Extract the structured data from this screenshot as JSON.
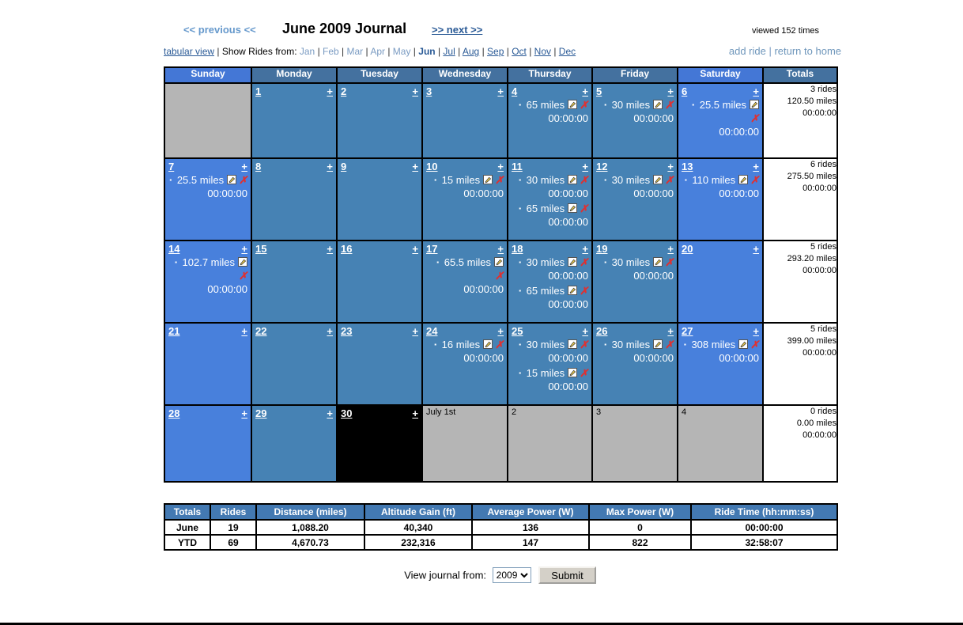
{
  "header": {
    "previous_label": "<< previous <<",
    "title": "June 2009 Journal",
    "next_label": ">> next >>",
    "viewed": "viewed 152 times",
    "tabular_view": "tabular view",
    "show_rides_label": "Show Rides from:",
    "months": [
      {
        "label": "Jan",
        "state": "muted"
      },
      {
        "label": "Feb",
        "state": "muted"
      },
      {
        "label": "Mar",
        "state": "muted"
      },
      {
        "label": "Apr",
        "state": "muted"
      },
      {
        "label": "May",
        "state": "muted"
      },
      {
        "label": "Jun",
        "state": "current"
      },
      {
        "label": "Jul",
        "state": "link"
      },
      {
        "label": "Aug",
        "state": "link"
      },
      {
        "label": "Sep",
        "state": "link"
      },
      {
        "label": "Oct",
        "state": "link"
      },
      {
        "label": "Nov",
        "state": "link"
      },
      {
        "label": "Dec",
        "state": "link"
      }
    ],
    "add_ride": "add ride",
    "return_home": "return to home"
  },
  "calendar": {
    "day_headers": [
      "Sunday",
      "Monday",
      "Tuesday",
      "Wednesday",
      "Thursday",
      "Friday",
      "Saturday",
      "Totals"
    ],
    "add_label": "+",
    "weeks": [
      {
        "days": [
          {
            "type": "other",
            "label": ""
          },
          {
            "type": "day",
            "num": "1",
            "rides": []
          },
          {
            "type": "day",
            "num": "2",
            "rides": []
          },
          {
            "type": "day",
            "num": "3",
            "rides": []
          },
          {
            "type": "day",
            "num": "4",
            "rides": [
              {
                "miles": "65 miles",
                "time": "00:00:00"
              }
            ]
          },
          {
            "type": "day",
            "num": "5",
            "rides": [
              {
                "miles": "30 miles",
                "time": "00:00:00"
              }
            ]
          },
          {
            "type": "day",
            "num": "6",
            "rides": [
              {
                "miles": "25.5 miles",
                "time": "00:00:00"
              }
            ]
          }
        ],
        "totals": {
          "rides": "3 rides",
          "miles": "120.50 miles",
          "time": "00:00:00"
        }
      },
      {
        "days": [
          {
            "type": "day",
            "num": "7",
            "rides": [
              {
                "miles": "25.5 miles",
                "time": "00:00:00"
              }
            ]
          },
          {
            "type": "day",
            "num": "8",
            "rides": []
          },
          {
            "type": "day",
            "num": "9",
            "rides": []
          },
          {
            "type": "day",
            "num": "10",
            "rides": [
              {
                "miles": "15 miles",
                "time": "00:00:00"
              }
            ]
          },
          {
            "type": "day",
            "num": "11",
            "rides": [
              {
                "miles": "30 miles",
                "time": "00:00:00"
              },
              {
                "miles": "65 miles",
                "time": "00:00:00"
              }
            ]
          },
          {
            "type": "day",
            "num": "12",
            "rides": [
              {
                "miles": "30 miles",
                "time": "00:00:00"
              }
            ]
          },
          {
            "type": "day",
            "num": "13",
            "rides": [
              {
                "miles": "110 miles",
                "time": "00:00:00"
              }
            ]
          }
        ],
        "totals": {
          "rides": "6 rides",
          "miles": "275.50 miles",
          "time": "00:00:00"
        }
      },
      {
        "days": [
          {
            "type": "day",
            "num": "14",
            "rides": [
              {
                "miles": "102.7 miles",
                "time": "00:00:00"
              }
            ]
          },
          {
            "type": "day",
            "num": "15",
            "rides": []
          },
          {
            "type": "day",
            "num": "16",
            "rides": []
          },
          {
            "type": "day",
            "num": "17",
            "rides": [
              {
                "miles": "65.5 miles",
                "time": "00:00:00"
              }
            ]
          },
          {
            "type": "day",
            "num": "18",
            "rides": [
              {
                "miles": "30 miles",
                "time": "00:00:00"
              },
              {
                "miles": "65 miles",
                "time": "00:00:00"
              }
            ]
          },
          {
            "type": "day",
            "num": "19",
            "rides": [
              {
                "miles": "30 miles",
                "time": "00:00:00"
              }
            ]
          },
          {
            "type": "day",
            "num": "20",
            "rides": []
          }
        ],
        "totals": {
          "rides": "5 rides",
          "miles": "293.20 miles",
          "time": "00:00:00"
        }
      },
      {
        "days": [
          {
            "type": "day",
            "num": "21",
            "rides": []
          },
          {
            "type": "day",
            "num": "22",
            "rides": []
          },
          {
            "type": "day",
            "num": "23",
            "rides": []
          },
          {
            "type": "day",
            "num": "24",
            "rides": [
              {
                "miles": "16 miles",
                "time": "00:00:00"
              }
            ]
          },
          {
            "type": "day",
            "num": "25",
            "rides": [
              {
                "miles": "30 miles",
                "time": "00:00:00"
              },
              {
                "miles": "15 miles",
                "time": "00:00:00"
              }
            ]
          },
          {
            "type": "day",
            "num": "26",
            "rides": [
              {
                "miles": "30 miles",
                "time": "00:00:00"
              }
            ]
          },
          {
            "type": "day",
            "num": "27",
            "rides": [
              {
                "miles": "308 miles",
                "time": "00:00:00"
              }
            ]
          }
        ],
        "totals": {
          "rides": "5 rides",
          "miles": "399.00 miles",
          "time": "00:00:00"
        }
      },
      {
        "days": [
          {
            "type": "day",
            "num": "28",
            "rides": []
          },
          {
            "type": "day",
            "num": "29",
            "rides": []
          },
          {
            "type": "day",
            "num": "30",
            "today": true,
            "rides": []
          },
          {
            "type": "other",
            "label": "July 1st"
          },
          {
            "type": "other",
            "label": "2"
          },
          {
            "type": "other",
            "label": "3"
          },
          {
            "type": "other",
            "label": "4"
          }
        ],
        "totals": {
          "rides": "0 rides",
          "miles": "0.00 miles",
          "time": "00:00:00"
        }
      }
    ]
  },
  "summary": {
    "headers": [
      "Totals",
      "Rides",
      "Distance (miles)",
      "Altitude Gain (ft)",
      "Average Power (W)",
      "Max Power (W)",
      "Ride Time (hh:mm:ss)"
    ],
    "rows": [
      [
        "June",
        "19",
        "1,088.20",
        "40,340",
        "136",
        "0",
        "00:00:00"
      ],
      [
        "YTD",
        "69",
        "4,670.73",
        "232,316",
        "147",
        "822",
        "32:58:07"
      ]
    ]
  },
  "footer": {
    "label": "View journal from:",
    "year": "2009",
    "submit": "Submit"
  },
  "icons": {
    "edit": "edit-ride-icon (notepad with pencil)",
    "delete": "delete-ride-icon",
    "delete_glyph": "✗",
    "bullet_glyph": "▪",
    "dropdown_arrow": "▼"
  },
  "colors": {
    "weekday_cell": "#4682B4",
    "weekend_cell": "#4880DC",
    "weekday_header": "#44719F",
    "weekend_header": "#4477D6",
    "other_month_cell": "#B5B5B5",
    "today_cell": "#000000",
    "link_dark": "#2A5A96",
    "link_muted": "#7A9BC2",
    "delete_red": "#E03030",
    "summary_header": "#4379B2"
  }
}
